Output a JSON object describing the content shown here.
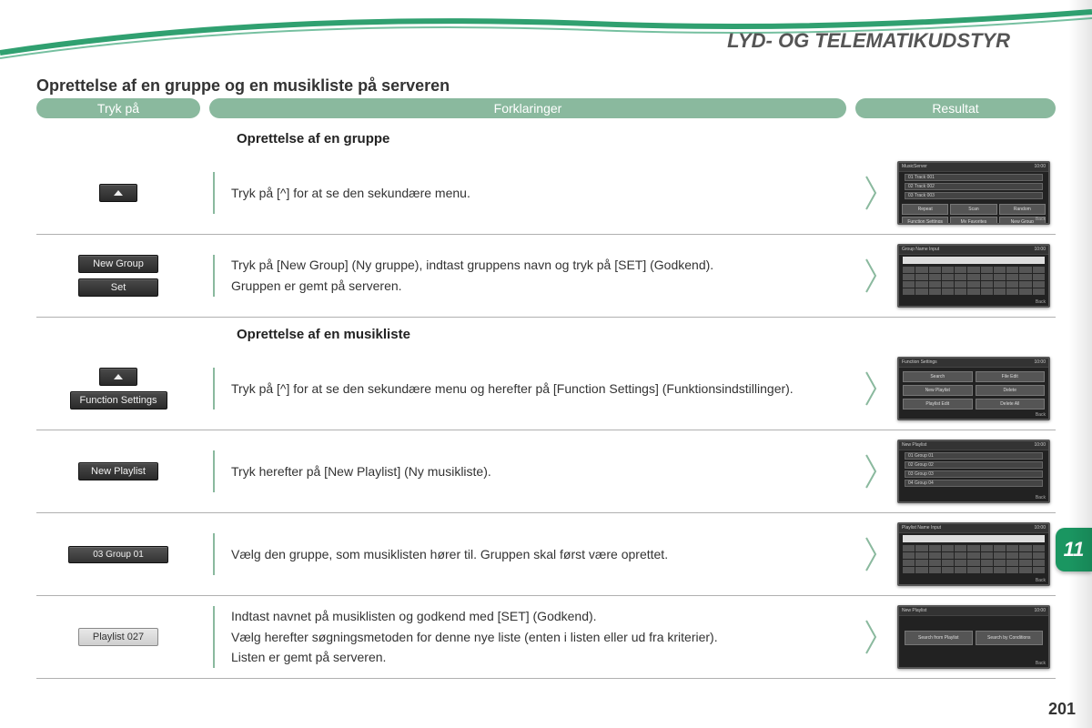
{
  "chapter_title": "LYD- OG TELEMATIKUDSTYR",
  "subtitle": "Oprettelse af en gruppe og en musikliste på serveren",
  "headers": {
    "press": "Tryk på",
    "explanation": "Forklaringer",
    "result": "Resultat"
  },
  "section_a_title": "Oprettelse af en gruppe",
  "section_b_title": "Oprettelse af en musikliste",
  "rows": [
    {
      "buttons": [
        {
          "kind": "up"
        }
      ],
      "text": [
        "Tryk på [^] for at se den sekundære menu."
      ],
      "screen": "musiclist"
    },
    {
      "buttons": [
        {
          "kind": "text",
          "label": "New Group"
        },
        {
          "kind": "text",
          "label": "Set"
        }
      ],
      "text": [
        "Tryk på [New Group] (Ny gruppe), indtast gruppens navn og tryk på [SET] (Godkend).",
        "Gruppen er gemt på serveren."
      ],
      "screen": "keyboard",
      "screen_title": "Group Name Input"
    },
    {
      "buttons": [
        {
          "kind": "up"
        },
        {
          "kind": "text",
          "label": "Function Settings"
        }
      ],
      "text": [
        "Tryk på [^] for at se den sekundære menu og herefter på [Function Settings] (Funktionsindstillinger)."
      ],
      "screen": "funcsettings"
    },
    {
      "buttons": [
        {
          "kind": "text",
          "label": "New Playlist"
        }
      ],
      "text": [
        "Tryk herefter på [New Playlist] (Ny musikliste)."
      ],
      "screen": "grouplist"
    },
    {
      "buttons": [
        {
          "kind": "row03",
          "label": "03   Group 01"
        }
      ],
      "text": [
        "Vælg den gruppe, som musiklisten hører til. Gruppen skal først være oprettet."
      ],
      "screen": "keyboard",
      "screen_title": "Playlist Name Input"
    },
    {
      "buttons": [
        {
          "kind": "light",
          "label": "Playlist 027"
        }
      ],
      "text": [
        "Indtast navnet på musiklisten og godkend med [SET] (Godkend).",
        "Vælg herefter søgningsmetoden for denne nye liste (enten i listen eller ud fra kriterier).",
        "Listen er gemt på serveren."
      ],
      "screen": "searchby"
    }
  ],
  "tab_number": "11",
  "page_number": "201",
  "colors": {
    "pill_bg": "#8ab99e",
    "accent": "#1a9661"
  }
}
